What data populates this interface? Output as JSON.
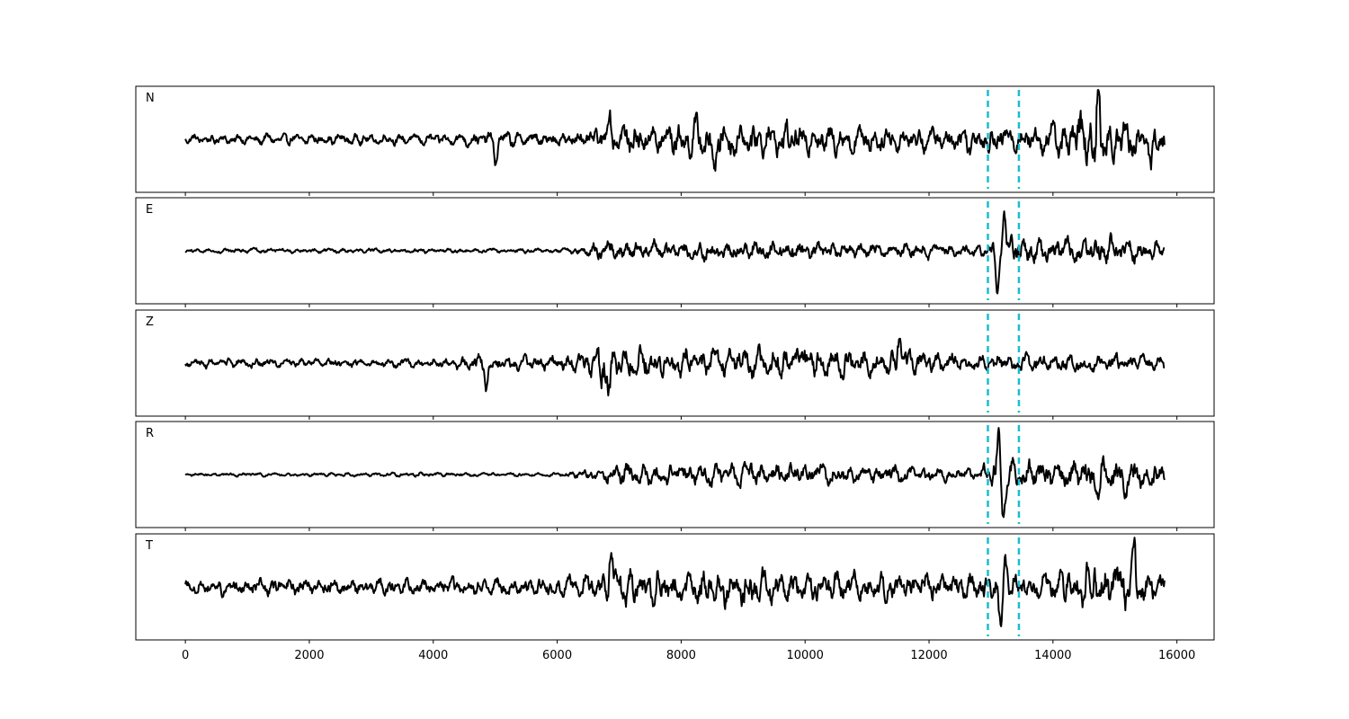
{
  "chart_data": {
    "type": "line",
    "title": "",
    "xlabel": "",
    "ylabel": "",
    "xlim": [
      -800,
      16600
    ],
    "x_ticks": [
      0,
      2000,
      4000,
      6000,
      8000,
      10000,
      12000,
      14000,
      16000
    ],
    "x_tick_labels": [
      "0",
      "2000",
      "4000",
      "6000",
      "8000",
      "10000",
      "12000",
      "14000",
      "16000"
    ],
    "shared_x": true,
    "grid": false,
    "markers": {
      "style": "dashed vertical lines",
      "color": "#17becf",
      "x": [
        12950,
        13450
      ]
    },
    "trace_color": "#000000",
    "series_x_range": [
      0,
      15800
    ],
    "panels": [
      {
        "name": "N",
        "ylim": [
          -1.0,
          1.0
        ],
        "envelope": [
          [
            0,
            0.12
          ],
          [
            1000,
            0.15
          ],
          [
            2000,
            0.15
          ],
          [
            3000,
            0.15
          ],
          [
            4000,
            0.15
          ],
          [
            5000,
            0.22
          ],
          [
            6000,
            0.2
          ],
          [
            6500,
            0.28
          ],
          [
            7000,
            0.4
          ],
          [
            8000,
            0.5
          ],
          [
            8500,
            0.55
          ],
          [
            9000,
            0.5
          ],
          [
            10000,
            0.45
          ],
          [
            11000,
            0.38
          ],
          [
            12000,
            0.32
          ],
          [
            12900,
            0.4
          ],
          [
            13400,
            0.38
          ],
          [
            14000,
            0.45
          ],
          [
            14700,
            0.95
          ],
          [
            15000,
            0.6
          ],
          [
            15800,
            0.4
          ]
        ],
        "spikes": [
          {
            "x": 5010,
            "y": -0.4
          },
          {
            "x": 6850,
            "y": 0.55
          },
          {
            "x": 8540,
            "y": -0.72
          },
          {
            "x": 14720,
            "y": 0.92
          },
          {
            "x": 14690,
            "y": -0.72
          },
          {
            "x": 15580,
            "y": -0.6
          }
        ]
      },
      {
        "name": "E",
        "ylim": [
          -1.0,
          1.0
        ],
        "envelope": [
          [
            0,
            0.05
          ],
          [
            1000,
            0.07
          ],
          [
            2000,
            0.06
          ],
          [
            3000,
            0.06
          ],
          [
            4000,
            0.06
          ],
          [
            5000,
            0.06
          ],
          [
            6000,
            0.06
          ],
          [
            6400,
            0.12
          ],
          [
            6700,
            0.3
          ],
          [
            7000,
            0.28
          ],
          [
            7800,
            0.25
          ],
          [
            9000,
            0.28
          ],
          [
            10000,
            0.25
          ],
          [
            11000,
            0.2
          ],
          [
            12000,
            0.2
          ],
          [
            12800,
            0.15
          ],
          [
            13000,
            0.25
          ],
          [
            13400,
            0.4
          ],
          [
            14000,
            0.35
          ],
          [
            14800,
            0.4
          ],
          [
            15800,
            0.22
          ]
        ],
        "spikes": [
          {
            "x": 13100,
            "y": -0.85
          },
          {
            "x": 13210,
            "y": 0.72
          }
        ]
      },
      {
        "name": "Z",
        "ylim": [
          -1.0,
          1.0
        ],
        "envelope": [
          [
            0,
            0.12
          ],
          [
            1000,
            0.13
          ],
          [
            2000,
            0.12
          ],
          [
            3000,
            0.12
          ],
          [
            4000,
            0.12
          ],
          [
            4800,
            0.22
          ],
          [
            5000,
            0.22
          ],
          [
            6000,
            0.22
          ],
          [
            6500,
            0.35
          ],
          [
            6700,
            0.8
          ],
          [
            7000,
            0.45
          ],
          [
            8000,
            0.4
          ],
          [
            9000,
            0.4
          ],
          [
            9900,
            0.45
          ],
          [
            11000,
            0.35
          ],
          [
            11500,
            0.35
          ],
          [
            12000,
            0.3
          ],
          [
            13000,
            0.25
          ],
          [
            14000,
            0.25
          ],
          [
            15000,
            0.25
          ],
          [
            15800,
            0.2
          ]
        ],
        "spikes": [
          {
            "x": 4860,
            "y": -0.45
          },
          {
            "x": 6620,
            "y": 0.8
          },
          {
            "x": 6610,
            "y": -0.85
          },
          {
            "x": 6830,
            "y": -0.55
          },
          {
            "x": 9880,
            "y": 0.47
          },
          {
            "x": 11520,
            "y": 0.5
          }
        ]
      },
      {
        "name": "R",
        "ylim": [
          -1.0,
          1.0
        ],
        "envelope": [
          [
            0,
            0.04
          ],
          [
            1000,
            0.05
          ],
          [
            2000,
            0.05
          ],
          [
            3000,
            0.05
          ],
          [
            4000,
            0.06
          ],
          [
            5000,
            0.05
          ],
          [
            6000,
            0.05
          ],
          [
            6500,
            0.15
          ],
          [
            6800,
            0.3
          ],
          [
            7500,
            0.3
          ],
          [
            8500,
            0.3
          ],
          [
            9500,
            0.32
          ],
          [
            10500,
            0.3
          ],
          [
            11000,
            0.25
          ],
          [
            12000,
            0.22
          ],
          [
            12800,
            0.15
          ],
          [
            13100,
            0.6
          ],
          [
            13450,
            0.35
          ],
          [
            14000,
            0.4
          ],
          [
            14800,
            0.5
          ],
          [
            15800,
            0.35
          ]
        ],
        "spikes": [
          {
            "x": 13120,
            "y": 0.85
          },
          {
            "x": 13190,
            "y": -0.82
          },
          {
            "x": 14750,
            "y": -0.45
          },
          {
            "x": 15200,
            "y": -0.45
          }
        ]
      },
      {
        "name": "T",
        "ylim": [
          -1.0,
          1.0
        ],
        "envelope": [
          [
            0,
            0.2
          ],
          [
            1000,
            0.22
          ],
          [
            2000,
            0.22
          ],
          [
            3000,
            0.22
          ],
          [
            4000,
            0.22
          ],
          [
            5000,
            0.25
          ],
          [
            6000,
            0.28
          ],
          [
            6500,
            0.35
          ],
          [
            7000,
            0.5
          ],
          [
            8000,
            0.5
          ],
          [
            9000,
            0.5
          ],
          [
            10000,
            0.45
          ],
          [
            11000,
            0.38
          ],
          [
            12000,
            0.35
          ],
          [
            13000,
            0.4
          ],
          [
            13450,
            0.35
          ],
          [
            14000,
            0.4
          ],
          [
            14700,
            0.65
          ],
          [
            15300,
            0.65
          ],
          [
            15800,
            0.3
          ]
        ],
        "spikes": [
          {
            "x": 6860,
            "y": 0.6
          },
          {
            "x": 13150,
            "y": -0.9
          },
          {
            "x": 13230,
            "y": 0.6
          },
          {
            "x": 14690,
            "y": 0.68
          },
          {
            "x": 14700,
            "y": -0.72
          },
          {
            "x": 15310,
            "y": 0.7
          }
        ]
      }
    ]
  }
}
